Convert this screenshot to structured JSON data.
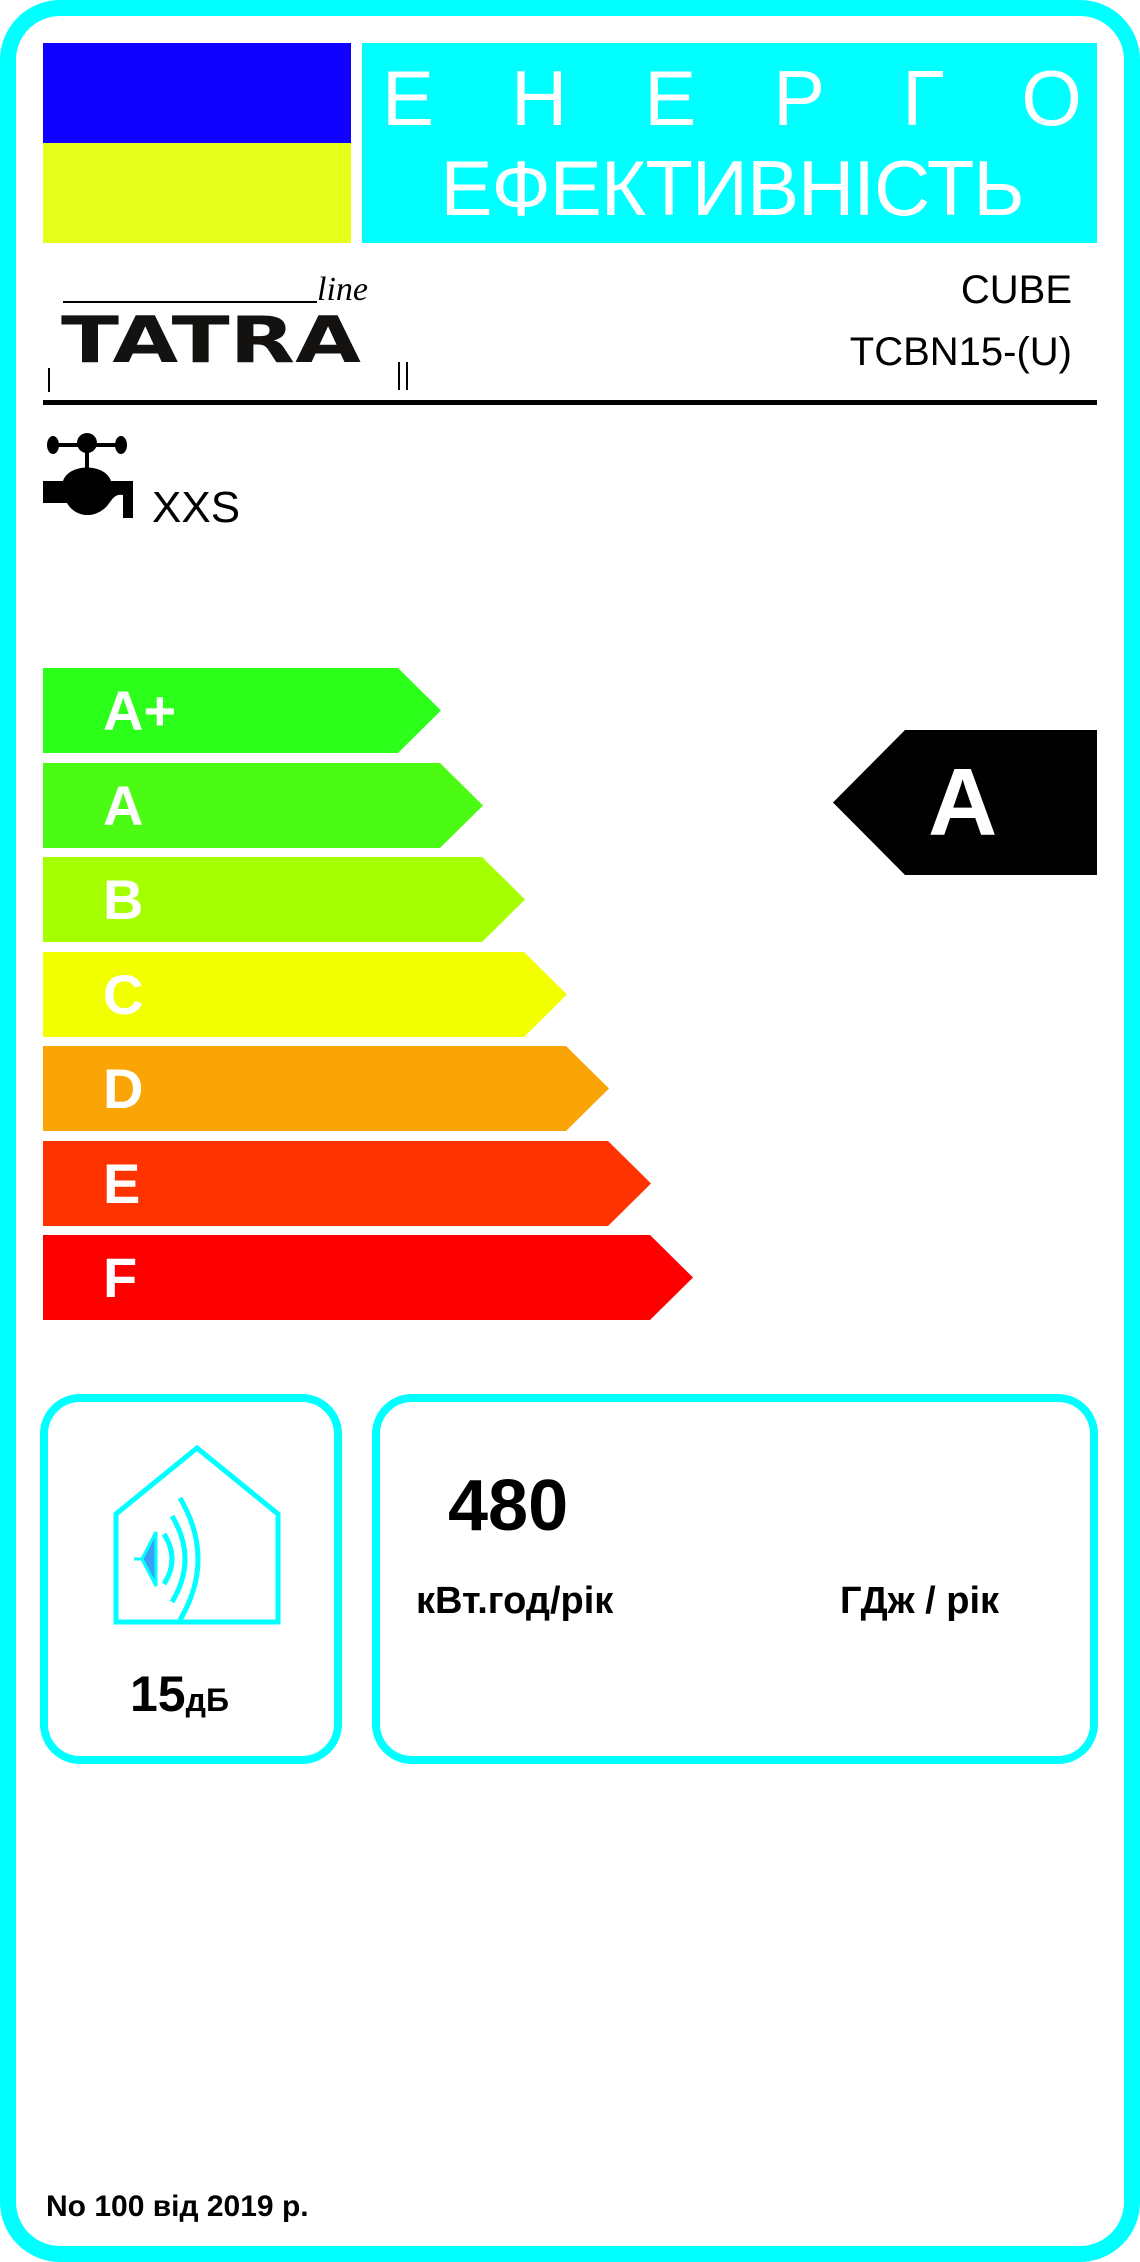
{
  "colors": {
    "frame": "#00ffff",
    "flag_blue": "#0f00ff",
    "flag_yellow": "#e5ff1a",
    "rating_arrow": "#000000",
    "speaker": "#3aa0f5"
  },
  "header": {
    "title_line1": [
      "Е",
      "Н",
      "Е",
      "Р",
      "Г",
      "О"
    ],
    "title_line2": "ЕФЕКТИВНІСТЬ"
  },
  "brand": {
    "name": "TATRA",
    "suffix": "line"
  },
  "product": {
    "series": "CUBE",
    "model": "TCBN15-(U)"
  },
  "tap_profile": {
    "icon": "water-tap-icon",
    "size": "XXS"
  },
  "scale": [
    {
      "label": "A+",
      "color": "#2cff1a"
    },
    {
      "label": "A",
      "color": "#4cfb13"
    },
    {
      "label": "B",
      "color": "#a6ff00"
    },
    {
      "label": "C",
      "color": "#f2ff00"
    },
    {
      "label": "D",
      "color": "#fba405"
    },
    {
      "label": "E",
      "color": "#ff3300"
    },
    {
      "label": "F",
      "color": "#ff0000"
    }
  ],
  "rating": {
    "class": "A"
  },
  "noise": {
    "icon": "speaker-house-icon",
    "value": "15",
    "unit": "дБ"
  },
  "energy": {
    "value": "480",
    "unit_kwh": "кВт.год/рік",
    "unit_gj": "ГДж / рік"
  },
  "footer": {
    "regulation": "No 100 від 2019 р."
  }
}
